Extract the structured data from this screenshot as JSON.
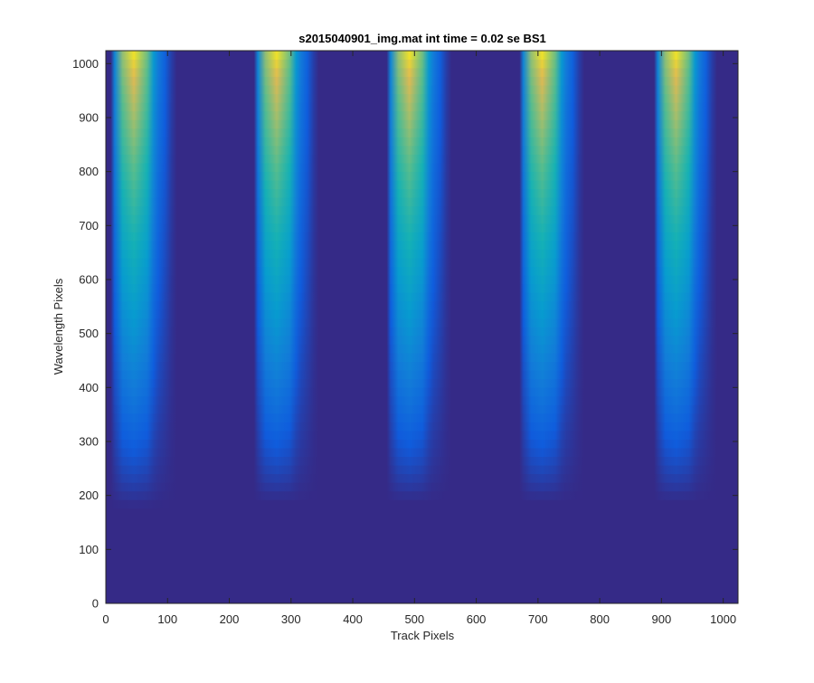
{
  "chart_data": {
    "type": "heatmap",
    "title": "s2015040901_img.mat int time = 0.02 se   BS1",
    "xlabel": "Track Pixels",
    "ylabel": "Wavelength Pixels",
    "xlim": [
      0,
      1024
    ],
    "ylim": [
      0,
      1024
    ],
    "x_ticks": [
      0,
      100,
      200,
      300,
      400,
      500,
      600,
      700,
      800,
      900,
      1000
    ],
    "y_ticks": [
      0,
      100,
      200,
      300,
      400,
      500,
      600,
      700,
      800,
      900,
      1000
    ],
    "grid": false,
    "colormap": "parula",
    "background_color": "#352a87",
    "stripes": [
      {
        "x_start": 8,
        "x_end": 115,
        "peak_x": 45,
        "onset_y": 180
      },
      {
        "x_start": 240,
        "x_end": 345,
        "peak_x": 285,
        "onset_y": 190
      },
      {
        "x_start": 455,
        "x_end": 560,
        "peak_x": 500,
        "onset_y": 190
      },
      {
        "x_start": 670,
        "x_end": 775,
        "peak_x": 715,
        "onset_y": 190
      },
      {
        "x_start": 888,
        "x_end": 990,
        "peak_x": 930,
        "onset_y": 190
      }
    ]
  }
}
